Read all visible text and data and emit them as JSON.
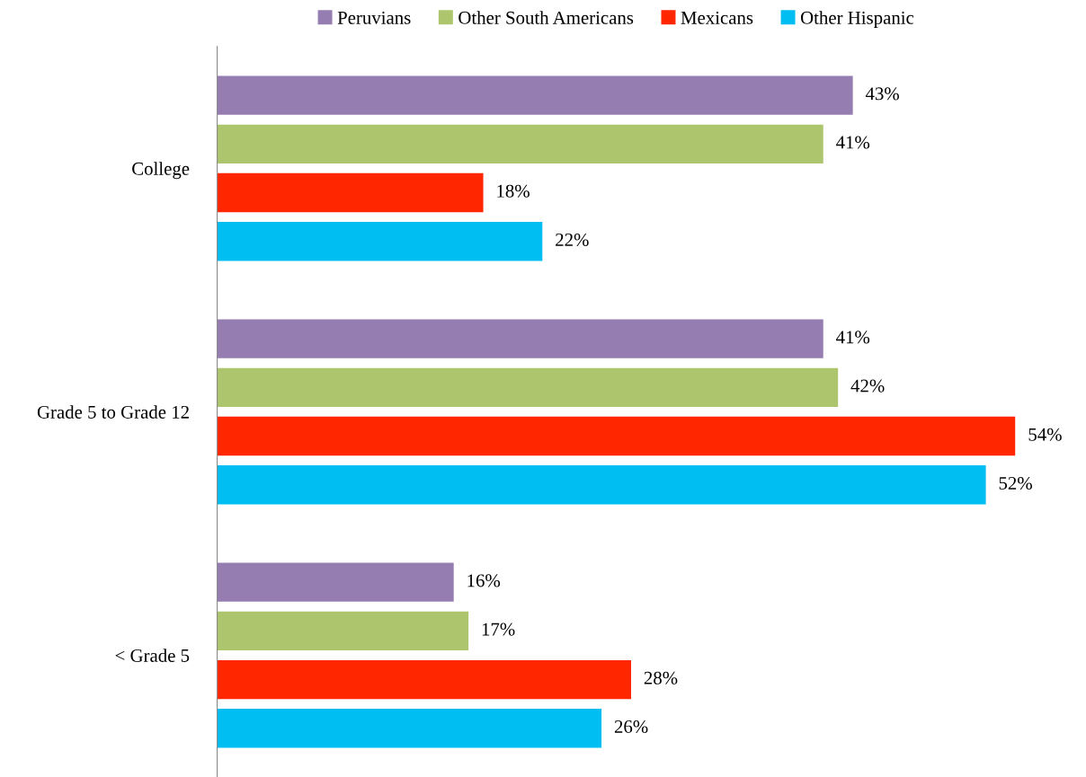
{
  "chart_data": {
    "type": "bar",
    "orientation": "horizontal",
    "categories": [
      "College",
      "Grade 5 to Grade 12",
      "< Grade 5"
    ],
    "series": [
      {
        "name": "Peruvians",
        "color": "#957db1",
        "values": [
          43,
          41,
          16
        ],
        "value_labels": [
          "43%",
          "41%",
          "16%"
        ]
      },
      {
        "name": "Other South Americans",
        "color": "#adc66e",
        "values": [
          41,
          42,
          17
        ],
        "value_labels": [
          "41%",
          "42%",
          "17%"
        ]
      },
      {
        "name": "Mexicans",
        "color": "#ff2600",
        "values": [
          18,
          54,
          28
        ],
        "value_labels": [
          "18%",
          "54%",
          "28%"
        ]
      },
      {
        "name": "Other Hispanic",
        "color": "#00bdf2",
        "values": [
          22,
          52,
          26
        ],
        "value_labels": [
          "22%",
          "52%",
          "26%"
        ]
      }
    ],
    "legend": "top",
    "grid": false
  }
}
